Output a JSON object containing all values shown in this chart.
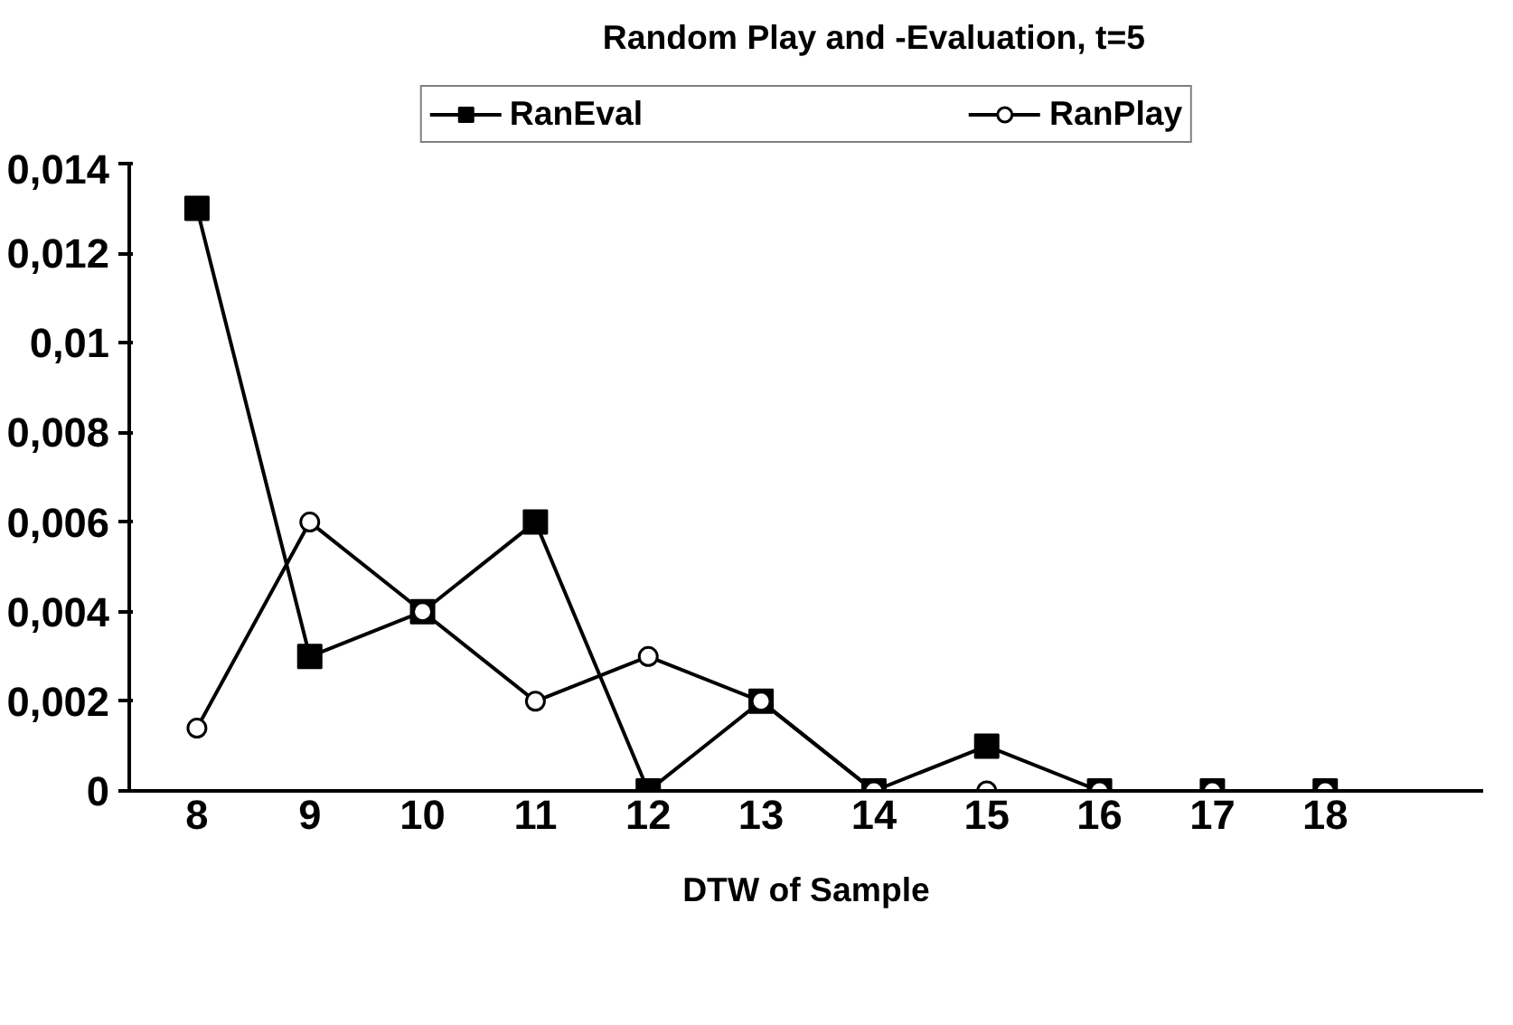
{
  "chart_data": {
    "type": "line",
    "title": "Random Play and -Evaluation, t=5",
    "xlabel": "DTW of Sample",
    "categories": [
      "8",
      "9",
      "10",
      "11",
      "12",
      "13",
      "14",
      "15",
      "16",
      "17",
      "18"
    ],
    "series": [
      {
        "name": "RanEval",
        "color": "#000000",
        "marker": "square",
        "values": [
          0.013,
          0.003,
          0.004,
          0.006,
          0,
          0.002,
          0,
          0.001,
          0,
          0,
          0
        ]
      },
      {
        "name": "RanPlay",
        "color": "#000000",
        "marker": "circle",
        "values": [
          0.0014,
          0.006,
          0.004,
          0.002,
          0.003,
          0.002,
          0,
          0,
          0,
          0,
          0
        ]
      }
    ],
    "ylim": [
      0,
      0.014
    ],
    "yticks": [
      0,
      {
        "value": 0.002,
        "label": "0,002"
      },
      {
        "value": 0.004,
        "label": "0,004"
      },
      {
        "value": 0.006,
        "label": "0,006"
      },
      {
        "value": 0.008,
        "label": "0,008"
      },
      {
        "value": 0.01,
        "label": "0,01"
      },
      {
        "value": 0.012,
        "label": "0,012"
      },
      {
        "value": 0.014,
        "label": "0,014"
      }
    ],
    "grid": false,
    "legend": "top",
    "line_style": "solid"
  }
}
